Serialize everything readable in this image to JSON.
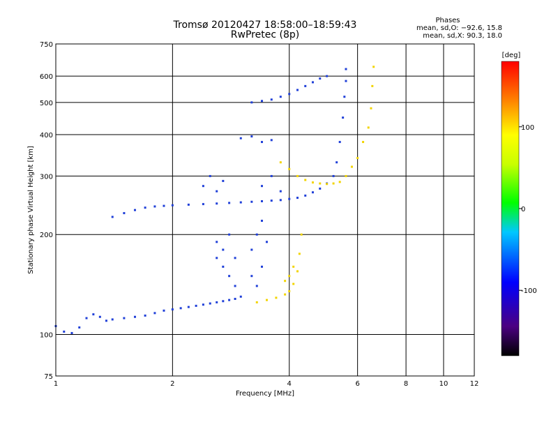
{
  "chart_data": {
    "type": "scatter",
    "title": "Tromsø 20120427 18:58:00–18:59:43",
    "subtitle": "RwPretec (8p)",
    "xlabel": "Frequency [MHz]",
    "ylabel": "Stationary phase Virtual Height [km]",
    "x_scale": "log",
    "y_scale": "log",
    "xlim": [
      1,
      12
    ],
    "ylim": [
      75,
      750
    ],
    "x_ticks": [
      1,
      2,
      4,
      6,
      8,
      10,
      12
    ],
    "y_ticks": [
      75,
      100,
      200,
      300,
      400,
      500,
      600,
      750
    ],
    "grid": true,
    "phase_box": {
      "heading": "Phases",
      "line_o": "mean, sd,O: −92.6, 15.8",
      "line_x": "mean, sd,X: 90.3, 18.0"
    },
    "colorbar": {
      "label": "[deg]",
      "range": [
        -180,
        180
      ],
      "ticks": [
        100,
        0,
        -100
      ]
    },
    "series": [
      {
        "mode": "O",
        "phase": -95,
        "points": [
          [
            1.0,
            106
          ],
          [
            1.05,
            102
          ],
          [
            1.1,
            101
          ],
          [
            1.15,
            105
          ],
          [
            1.2,
            112
          ],
          [
            1.25,
            115
          ],
          [
            1.3,
            113
          ],
          [
            1.35,
            110
          ],
          [
            1.4,
            111
          ],
          [
            1.5,
            112
          ],
          [
            1.6,
            113
          ],
          [
            1.7,
            114
          ],
          [
            1.8,
            116
          ],
          [
            1.9,
            118
          ],
          [
            2.0,
            119
          ],
          [
            2.1,
            120
          ],
          [
            2.2,
            121
          ],
          [
            2.3,
            122
          ],
          [
            2.4,
            123
          ],
          [
            2.5,
            124
          ],
          [
            2.6,
            125
          ],
          [
            2.7,
            126
          ],
          [
            2.8,
            127
          ],
          [
            2.9,
            128
          ],
          [
            3.0,
            130
          ],
          [
            1.4,
            226
          ],
          [
            1.5,
            232
          ],
          [
            1.6,
            237
          ],
          [
            1.7,
            241
          ],
          [
            1.8,
            243
          ],
          [
            1.9,
            244
          ],
          [
            2.0,
            245
          ],
          [
            2.2,
            246
          ],
          [
            2.4,
            247
          ],
          [
            2.6,
            248
          ],
          [
            2.8,
            249
          ],
          [
            3.0,
            250
          ],
          [
            3.2,
            251
          ],
          [
            3.4,
            252
          ],
          [
            3.6,
            253
          ],
          [
            3.8,
            254
          ],
          [
            4.0,
            256
          ],
          [
            4.2,
            258
          ],
          [
            4.4,
            262
          ],
          [
            4.6,
            268
          ],
          [
            4.8,
            275
          ],
          [
            5.0,
            285
          ],
          [
            5.2,
            300
          ],
          [
            5.3,
            330
          ],
          [
            5.4,
            380
          ],
          [
            5.5,
            450
          ],
          [
            5.55,
            520
          ],
          [
            5.6,
            580
          ],
          [
            5.6,
            630
          ],
          [
            2.6,
            170
          ],
          [
            2.6,
            190
          ],
          [
            2.7,
            160
          ],
          [
            2.7,
            180
          ],
          [
            2.8,
            150
          ],
          [
            2.8,
            200
          ],
          [
            2.9,
            140
          ],
          [
            2.9,
            170
          ],
          [
            3.2,
            150
          ],
          [
            3.2,
            180
          ],
          [
            3.3,
            140
          ],
          [
            3.3,
            200
          ],
          [
            3.4,
            160
          ],
          [
            3.4,
            220
          ],
          [
            3.5,
            190
          ],
          [
            2.4,
            280
          ],
          [
            2.5,
            300
          ],
          [
            2.6,
            270
          ],
          [
            2.7,
            290
          ],
          [
            3.4,
            280
          ],
          [
            3.6,
            300
          ],
          [
            3.8,
            270
          ],
          [
            3.2,
            500
          ],
          [
            3.4,
            505
          ],
          [
            3.6,
            510
          ],
          [
            3.8,
            520
          ],
          [
            4.0,
            530
          ],
          [
            4.2,
            545
          ],
          [
            4.4,
            560
          ],
          [
            4.6,
            575
          ],
          [
            4.8,
            590
          ],
          [
            5.0,
            600
          ],
          [
            3.0,
            390
          ],
          [
            3.2,
            395
          ],
          [
            3.4,
            380
          ],
          [
            3.6,
            385
          ]
        ]
      },
      {
        "mode": "X",
        "phase": 100,
        "points": [
          [
            3.3,
            125
          ],
          [
            3.5,
            127
          ],
          [
            3.7,
            129
          ],
          [
            3.9,
            132
          ],
          [
            4.0,
            135
          ],
          [
            4.1,
            142
          ],
          [
            4.2,
            155
          ],
          [
            4.25,
            175
          ],
          [
            4.3,
            200
          ],
          [
            3.8,
            330
          ],
          [
            4.0,
            315
          ],
          [
            4.2,
            300
          ],
          [
            4.4,
            292
          ],
          [
            4.6,
            287
          ],
          [
            4.8,
            285
          ],
          [
            5.0,
            284
          ],
          [
            5.2,
            285
          ],
          [
            5.4,
            288
          ],
          [
            5.6,
            300
          ],
          [
            5.8,
            320
          ],
          [
            6.0,
            340
          ],
          [
            6.2,
            380
          ],
          [
            6.4,
            420
          ],
          [
            6.5,
            480
          ],
          [
            6.55,
            560
          ],
          [
            6.6,
            640
          ],
          [
            3.9,
            145
          ],
          [
            4.0,
            150
          ],
          [
            4.1,
            160
          ]
        ]
      }
    ]
  }
}
